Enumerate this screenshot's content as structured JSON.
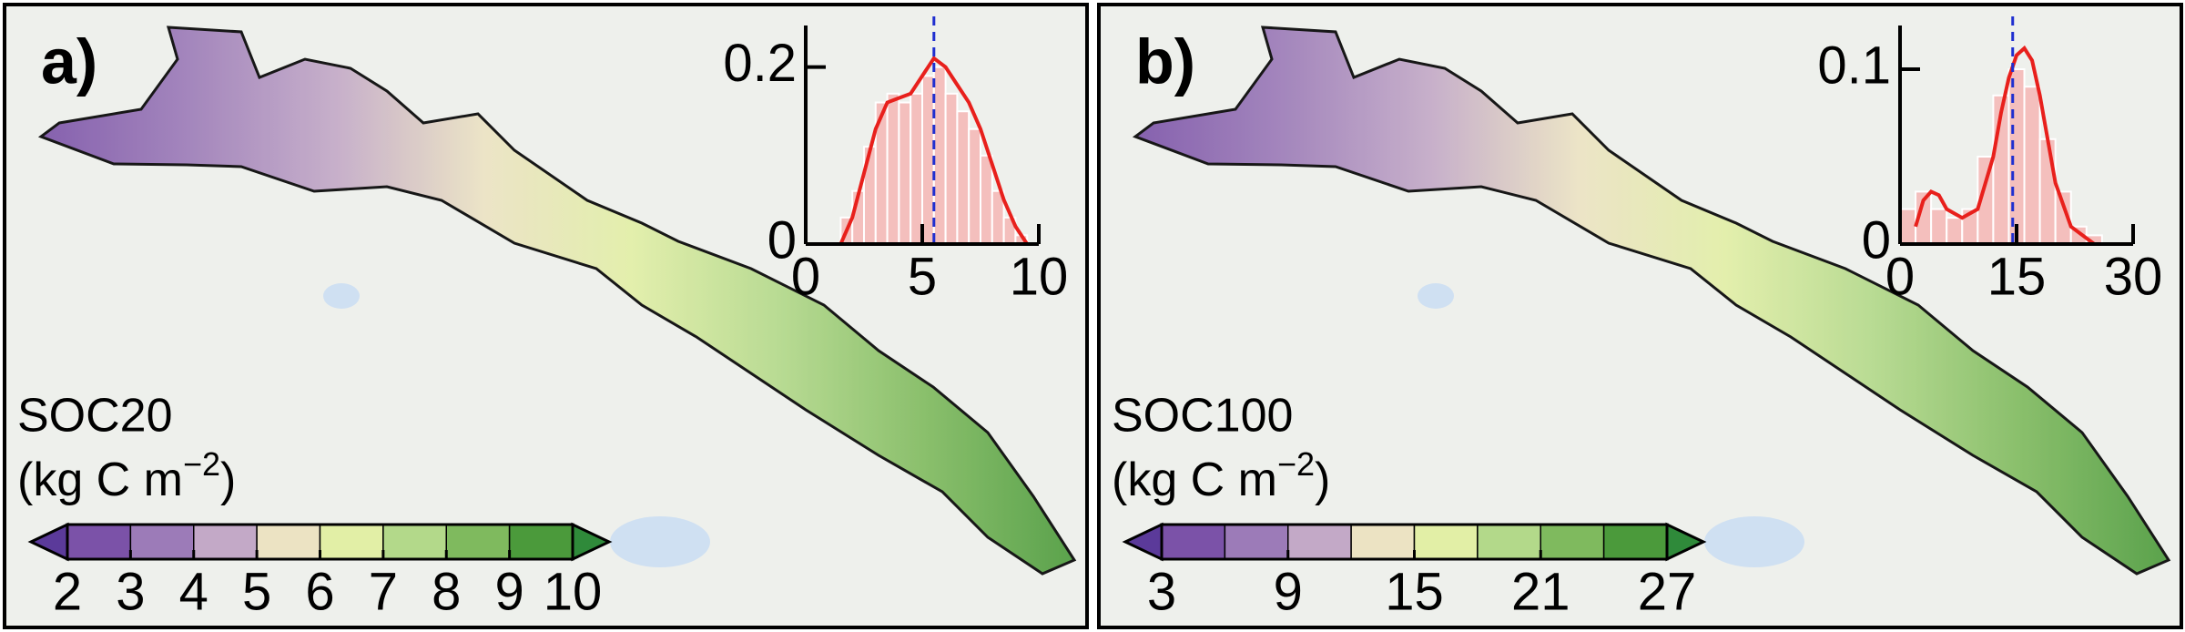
{
  "panels": [
    {
      "label": "a)",
      "title": "SOC20",
      "unit": [
        "(kg C m",
        "−2",
        ")"
      ],
      "colorbar": {
        "lim": [
          2,
          10
        ],
        "ticks": [
          2,
          3,
          4,
          5,
          6,
          7,
          8,
          9,
          10
        ],
        "colors": [
          "#7b52a8",
          "#9c7bb8",
          "#c3a9c7",
          "#ece3c3",
          "#e2efa6",
          "#b3d98a",
          "#7fba5e",
          "#4b9a3b"
        ],
        "under_color": "#5b3a9a",
        "over_color": "#2f8a3a"
      },
      "inset": {
        "type": "histogram",
        "xlim": [
          0,
          10
        ],
        "xticks": [
          0,
          5,
          10
        ],
        "ylim": [
          0,
          0.247
        ],
        "yticks": [
          0,
          0.2
        ],
        "bins": [
          1.5,
          2,
          2.5,
          3,
          3.5,
          4,
          4.5,
          5,
          5.5,
          6,
          6.5,
          7,
          7.5,
          8,
          8.5,
          9,
          9.5
        ],
        "counts": [
          0.03,
          0.06,
          0.11,
          0.16,
          0.17,
          0.16,
          0.17,
          0.19,
          0.2,
          0.17,
          0.15,
          0.13,
          0.1,
          0.06,
          0.03,
          0.01
        ],
        "bar_color": "#f6a9a9",
        "kde": {
          "color": "#e8201c",
          "x": [
            1.5,
            2,
            2.5,
            3,
            3.5,
            4,
            4.5,
            5,
            5.5,
            6,
            6.5,
            7,
            7.5,
            8,
            8.5,
            9,
            9.5
          ],
          "y": [
            0,
            0.03,
            0.08,
            0.13,
            0.16,
            0.165,
            0.17,
            0.19,
            0.21,
            0.2,
            0.18,
            0.16,
            0.13,
            0.09,
            0.05,
            0.02,
            0
          ]
        },
        "mean": 5.5,
        "mean_color": "#1f2fd0"
      }
    },
    {
      "label": "b)",
      "title": "SOC100",
      "unit": [
        "(kg C m",
        "−2",
        ")"
      ],
      "colorbar": {
        "lim": [
          3,
          27
        ],
        "ticks": [
          3,
          9,
          15,
          21,
          27
        ],
        "colors": [
          "#7b52a8",
          "#9c7bb8",
          "#c3a9c7",
          "#ece3c3",
          "#e2efa6",
          "#b3d98a",
          "#7fba5e",
          "#4b9a3b"
        ],
        "under_color": "#5b3a9a",
        "over_color": "#2f8a3a"
      },
      "inset": {
        "type": "histogram",
        "xlim": [
          0,
          30
        ],
        "xticks": [
          0,
          15,
          30
        ],
        "ylim": [
          0,
          0.125
        ],
        "yticks": [
          0,
          0.1
        ],
        "bins": [
          0,
          2,
          4,
          6,
          8,
          10,
          12,
          14,
          16,
          18,
          20,
          22,
          24,
          26
        ],
        "counts": [
          0.02,
          0.03,
          0.02,
          0.015,
          0.02,
          0.05,
          0.085,
          0.1,
          0.09,
          0.06,
          0.03,
          0.01,
          0.005
        ],
        "bar_color": "#f6a9a9",
        "kde": {
          "color": "#e8201c",
          "x": [
            2,
            3,
            4,
            5,
            6,
            8,
            10,
            12,
            13,
            14,
            15,
            16,
            17,
            18,
            19,
            20,
            22,
            25
          ],
          "y": [
            0.01,
            0.025,
            0.03,
            0.028,
            0.02,
            0.015,
            0.02,
            0.05,
            0.075,
            0.095,
            0.108,
            0.112,
            0.105,
            0.085,
            0.06,
            0.035,
            0.01,
            0
          ]
        },
        "mean": 14.5,
        "mean_color": "#1f2fd0"
      }
    }
  ]
}
